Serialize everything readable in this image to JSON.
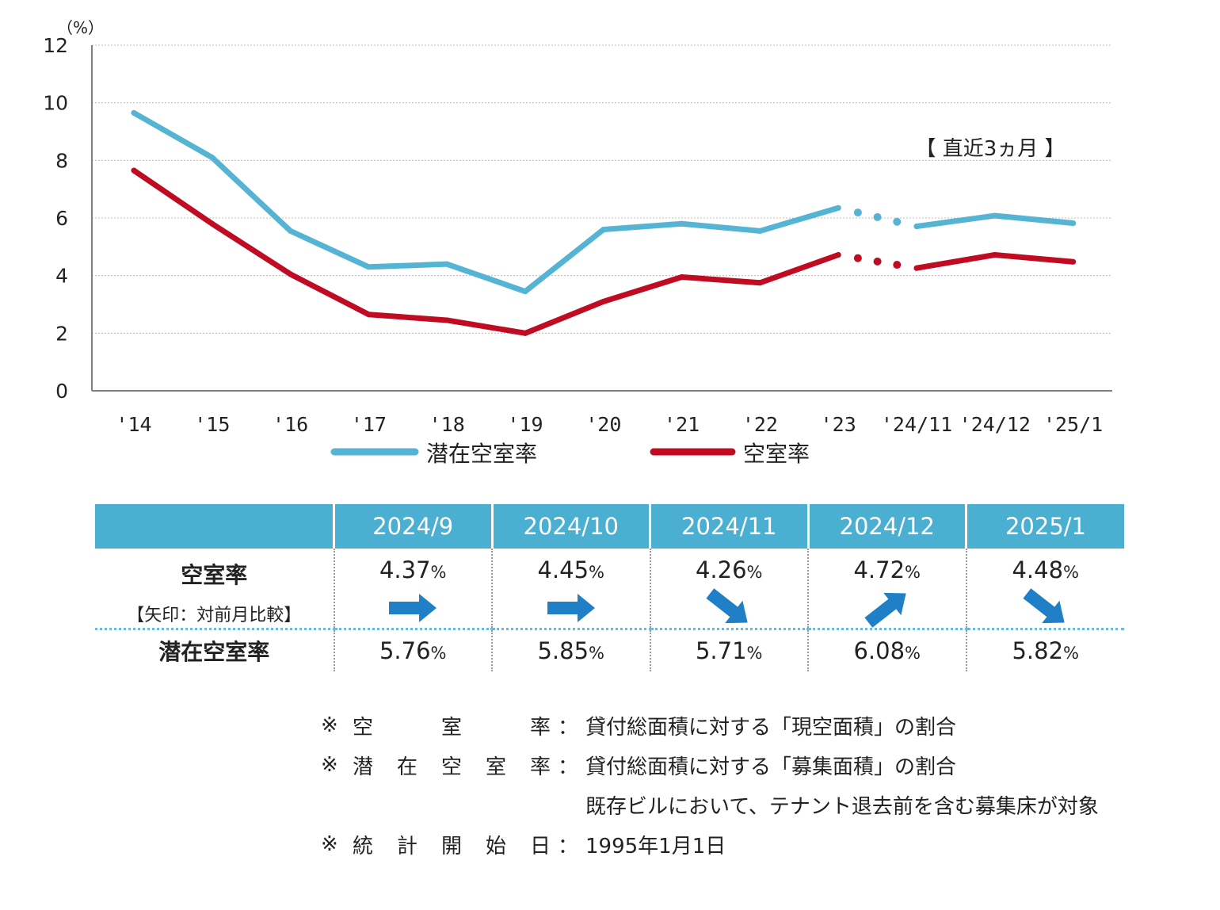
{
  "colors": {
    "latent": "#55b4d4",
    "vacancy": "#c00c23",
    "header_bg": "#4bafd1",
    "arrow": "#1f80c7"
  },
  "chart_data": {
    "type": "line",
    "unit_label": "（%）",
    "ylim": [
      0,
      12
    ],
    "yticks": [
      0,
      2,
      4,
      6,
      8,
      10,
      12
    ],
    "categories": [
      "'14",
      "'15",
      "'16",
      "'17",
      "'18",
      "'19",
      "'20",
      "'21",
      "'22",
      "'23",
      "'24/11",
      "'24/12",
      "'25/1"
    ],
    "series": [
      {
        "name": "潜在空室率",
        "color": "#55b4d4",
        "values": [
          9.65,
          8.1,
          5.55,
          4.3,
          4.4,
          3.45,
          5.6,
          5.8,
          5.55,
          6.35,
          5.71,
          6.08,
          5.82
        ]
      },
      {
        "name": "空室率",
        "color": "#c00c23",
        "values": [
          7.65,
          5.8,
          4.05,
          2.65,
          2.45,
          2.0,
          3.1,
          3.95,
          3.75,
          4.72,
          4.26,
          4.72,
          4.48
        ]
      }
    ],
    "annotation": "【 直近3ヵ月 】",
    "legend": [
      "潜在空室率",
      "空室率"
    ]
  },
  "table": {
    "months": [
      "2024/9",
      "2024/10",
      "2024/11",
      "2024/12",
      "2025/1"
    ],
    "vacancy_label": "空室率",
    "arrow_note": "【矢印：対前月比較】",
    "vacancy_values": [
      "4.37",
      "4.45",
      "4.26",
      "4.72",
      "4.48"
    ],
    "arrows": [
      "right-arrow-icon",
      "right-arrow-icon",
      "down-right-arrow-icon",
      "up-right-arrow-icon",
      "down-right-arrow-icon"
    ],
    "latent_label": "潜在空室率",
    "latent_values": [
      "5.76",
      "5.85",
      "5.71",
      "6.08",
      "5.82"
    ],
    "percent_sign": "%"
  },
  "notes": [
    {
      "mark": "※",
      "label_chars": [
        "空",
        "室",
        "率"
      ],
      "colon": "：",
      "text": "貸付総面積に対する「現空面積」の割合"
    },
    {
      "mark": "※",
      "label_chars": [
        "潜",
        "在",
        "空",
        "室",
        "率"
      ],
      "colon": "：",
      "text": "貸付総面積に対する「募集面積」の割合"
    },
    {
      "text": "既存ビルにおいて、テナント退去前を含む募集床が対象"
    },
    {
      "mark": "※",
      "label_chars": [
        "統",
        "計",
        "開",
        "始",
        "日"
      ],
      "colon": "：",
      "text": "1995年1月1日"
    }
  ]
}
